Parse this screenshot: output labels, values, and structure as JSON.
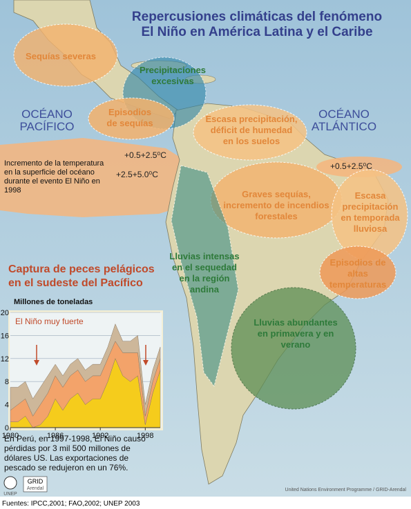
{
  "title": [
    "Repercusiones climáticas del fenómeno",
    "El Niño en América Latina y el Caribe"
  ],
  "oceans": [
    [
      "OCÉANO",
      "PACÍFICO"
    ],
    [
      "OCÉANO",
      "ATLÁNTICO"
    ]
  ],
  "regions": [
    [
      "Sequías severas"
    ],
    [
      "Precipitaciones",
      "excesivas"
    ],
    [
      "Episodios",
      "de sequías"
    ],
    [
      "Escasa precipitación,",
      "déficit de humedad",
      "en los suelos"
    ],
    [
      "Graves sequías,",
      "incremento de incendios",
      "forestales"
    ],
    [
      "Escasa",
      "precipitación",
      "en temporada",
      "lluviosa"
    ],
    [
      "Lluvias intensas",
      "en el sequedad",
      "en la región",
      "andina"
    ],
    [
      "Episodios de",
      "altas",
      "temperaturas"
    ],
    [
      "Lluvias abundantes",
      "en primavera y en",
      "verano"
    ]
  ],
  "temperatures": [
    "+0.5+2.5⁰C",
    "+2.5+5.0⁰C",
    "+0.5+2.5⁰C"
  ],
  "sst_note": [
    "Incremento de la temperatura",
    "en la superficie del océano",
    "durante el evento El Niño en",
    "1998"
  ],
  "chart_data": {
    "type": "area",
    "title": [
      "Captura de peces pelágicos",
      "en el sudeste del Pacífico"
    ],
    "y_label": "Millones de toneladas",
    "annotation": "El Niño muy fuerte",
    "x": [
      1980,
      1981,
      1982,
      1983,
      1984,
      1985,
      1986,
      1987,
      1988,
      1989,
      1990,
      1991,
      1992,
      1993,
      1994,
      1995,
      1996,
      1997,
      1998,
      1999,
      2000
    ],
    "series": [
      {
        "color": "#f5cc1c",
        "values": [
          1,
          1,
          2,
          0,
          0.5,
          2,
          5,
          3,
          5,
          6,
          4,
          5,
          5,
          8,
          12,
          9,
          8,
          9,
          0.5,
          6,
          10
        ]
      },
      {
        "color": "#f3a36a",
        "values": [
          2,
          3,
          3,
          2,
          3.5,
          4,
          4,
          4,
          4,
          4,
          4,
          4,
          4,
          4,
          3,
          4,
          5,
          4,
          1.5,
          2,
          2
        ]
      },
      {
        "color": "#cdb79a",
        "values": [
          4,
          3,
          3,
          3,
          3,
          3,
          2,
          2,
          2,
          2,
          2,
          2,
          2,
          2,
          3,
          2,
          2,
          3,
          2,
          2,
          2
        ]
      }
    ],
    "stacked": true,
    "xlim": [
      1980,
      2000
    ],
    "xticks": [
      1980,
      1986,
      1992,
      1998
    ],
    "ylim": [
      0,
      20
    ],
    "yticks": [
      0,
      4,
      8,
      12,
      16,
      20
    ],
    "grid": true
  },
  "chart_note": [
    "En Perú, en 1997-1998, El Niño causó",
    "pérdidas por 3 mil 500 millones de",
    "dólares US. Las exportaciones de",
    "pescado se redujeron en un 76%."
  ],
  "logos": [
    "UNEP",
    "GRID",
    "Arendal"
  ],
  "credit": "United Nations Environment Programme / GRID-Arendal",
  "source": "Fuentes: IPCC,2001; FAO,2002; UNEP 2003"
}
